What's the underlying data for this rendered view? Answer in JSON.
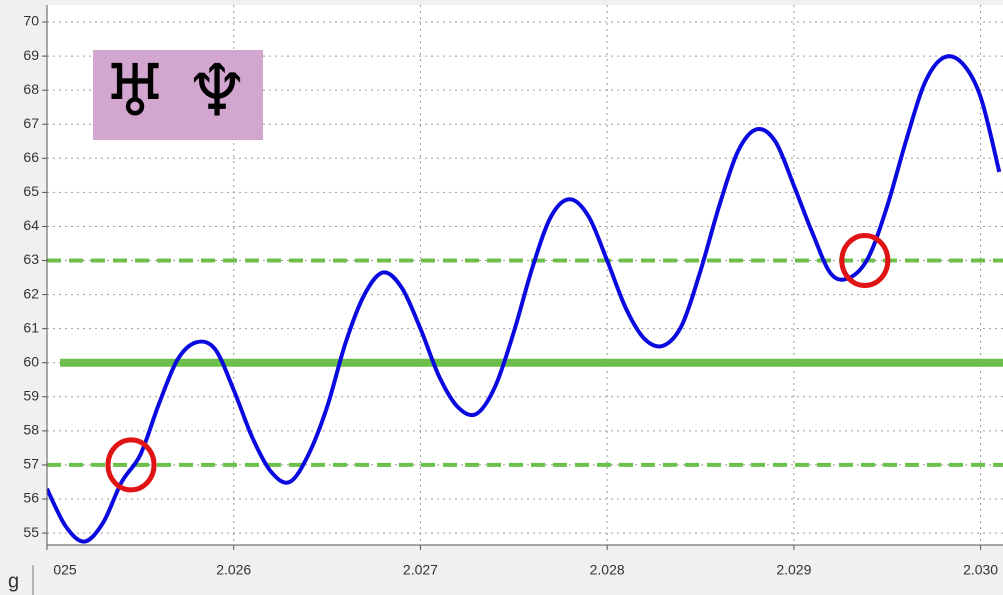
{
  "chart_data": {
    "type": "line",
    "corner_label": "g",
    "symbols": [
      "♅",
      "♆"
    ],
    "x": [
      2.025,
      2.0251,
      2.0252,
      2.0253,
      2.0254,
      2.0255,
      2.0256,
      2.0257,
      2.0258,
      2.0259,
      2.026,
      2.0261,
      2.0262,
      2.0263,
      2.0264,
      2.0265,
      2.0266,
      2.0267,
      2.0268,
      2.0269,
      2.027,
      2.0271,
      2.0272,
      2.0273,
      2.0274,
      2.0275,
      2.0276,
      2.0277,
      2.0278,
      2.0279,
      2.028,
      2.0281,
      2.0282,
      2.0283,
      2.0284,
      2.0285,
      2.0286,
      2.0287,
      2.0288,
      2.0289,
      2.029,
      2.0291,
      2.0292,
      2.0293,
      2.0294,
      2.0295,
      2.0296,
      2.0297,
      2.0298,
      2.0299,
      2.03,
      2.0301
    ],
    "series": [
      {
        "color": "#0a0ae0",
        "values": [
          56.3,
          55.2,
          54.75,
          55.3,
          56.5,
          57.3,
          58.8,
          60.1,
          60.6,
          60.4,
          59.2,
          57.8,
          56.8,
          56.5,
          57.3,
          58.7,
          60.6,
          62.0,
          62.65,
          62.2,
          61.0,
          59.6,
          58.7,
          58.5,
          59.3,
          60.9,
          62.8,
          64.3,
          64.8,
          64.3,
          63.0,
          61.6,
          60.7,
          60.5,
          61.1,
          62.7,
          64.6,
          66.2,
          66.85,
          66.5,
          65.2,
          63.8,
          62.6,
          62.5,
          63.1,
          64.6,
          66.5,
          68.2,
          68.95,
          68.8,
          67.8,
          65.6
        ]
      }
    ],
    "reference_lines": [
      {
        "value": 63,
        "style": "dashed",
        "color": "#6cc04a"
      },
      {
        "value": 60,
        "style": "solid",
        "color": "#6cc04a"
      },
      {
        "value": 57,
        "style": "dashed",
        "color": "#6cc04a"
      }
    ],
    "markers": [
      {
        "x": 2.02545,
        "y": 57,
        "color": "#e01414"
      },
      {
        "x": 2.02938,
        "y": 63,
        "color": "#e01414"
      }
    ],
    "xlim": [
      2.025,
      2.03012
    ],
    "xticks": [
      {
        "value": 2.025,
        "label": "025"
      },
      2.026,
      2.027,
      2.028,
      2.029,
      {
        "value": 2.03,
        "label": "2.030"
      }
    ],
    "ylim": [
      54.65,
      70.5
    ],
    "yticks": [
      55,
      56,
      57,
      58,
      59,
      60,
      61,
      62,
      63,
      64,
      65,
      66,
      67,
      68,
      69,
      70
    ],
    "grid": true
  }
}
